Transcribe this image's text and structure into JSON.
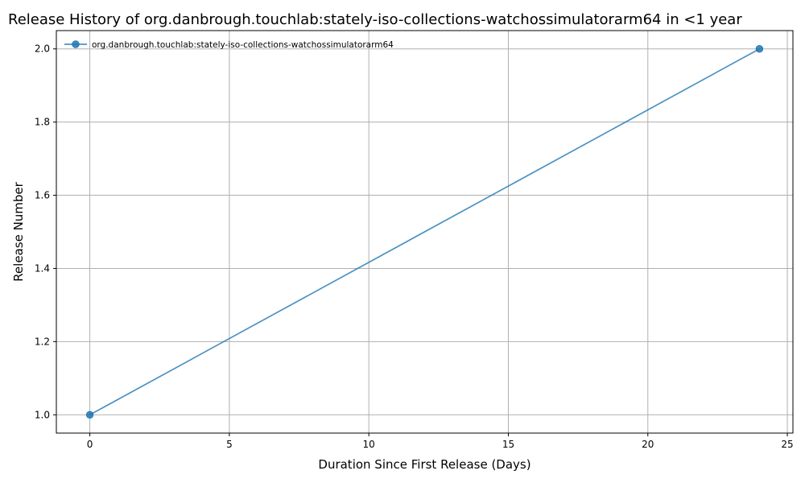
{
  "chart_data": {
    "type": "line",
    "title": "Release History of org.danbrough.touchlab:stately-iso-collections-watchossimulatorarm64 in <1 year",
    "xlabel": "Duration Since First Release (Days)",
    "ylabel": "Release Number",
    "xlim": [
      -1.2,
      25.2
    ],
    "ylim": [
      0.95,
      2.05
    ],
    "xticks": [
      0,
      5,
      10,
      15,
      20,
      25
    ],
    "yticks": [
      1.0,
      1.2,
      1.4,
      1.6,
      1.8,
      2.0
    ],
    "xtick_labels": [
      "0",
      "5",
      "10",
      "15",
      "20",
      "25"
    ],
    "ytick_labels": [
      "1.0",
      "1.2",
      "1.4",
      "1.6",
      "1.8",
      "2.0"
    ],
    "grid": true,
    "legend_position": "upper-left",
    "series": [
      {
        "name": "org.danbrough.touchlab:stately-iso-collections-watchossimulatorarm64",
        "color": "#1f77b4",
        "marker": "circle",
        "x": [
          0,
          24
        ],
        "y": [
          1,
          2
        ]
      }
    ]
  }
}
